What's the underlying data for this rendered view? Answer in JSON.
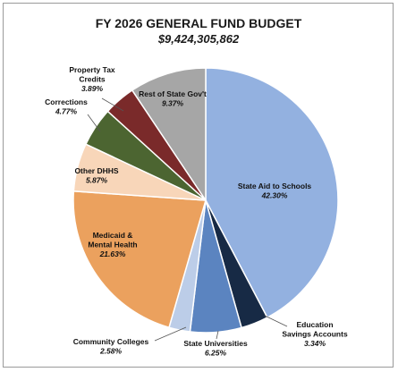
{
  "chart_data": {
    "type": "pie",
    "title": "FY 2026 GENERAL FUND BUDGET",
    "subtitle": "$9,424,305,862",
    "slices": [
      {
        "name": "State Aid to Schools",
        "value": 42.3,
        "label": "42.30%",
        "color": "#93b1e0"
      },
      {
        "name": "Education Savings Accounts",
        "value": 3.34,
        "label": "3.34%",
        "color": "#172a45"
      },
      {
        "name": "State Universities",
        "value": 6.25,
        "label": "6.25%",
        "color": "#5b84c0"
      },
      {
        "name": "Community Colleges",
        "value": 2.58,
        "label": "2.58%",
        "color": "#bccde8"
      },
      {
        "name": "Medicaid & Mental Health",
        "value": 21.63,
        "label": "21.63%",
        "color": "#eba15e"
      },
      {
        "name": "Other DHHS",
        "value": 5.87,
        "label": "5.87%",
        "color": "#f8d6b9"
      },
      {
        "name": "Corrections",
        "value": 4.77,
        "label": "4.77%",
        "color": "#4c6531"
      },
      {
        "name": "Property Tax Credits",
        "value": 3.89,
        "label": "3.89%",
        "color": "#7a2a2a"
      },
      {
        "name": "Rest of State Gov't",
        "value": 9.37,
        "label": "9.37%",
        "color": "#a6a6a6"
      }
    ]
  }
}
